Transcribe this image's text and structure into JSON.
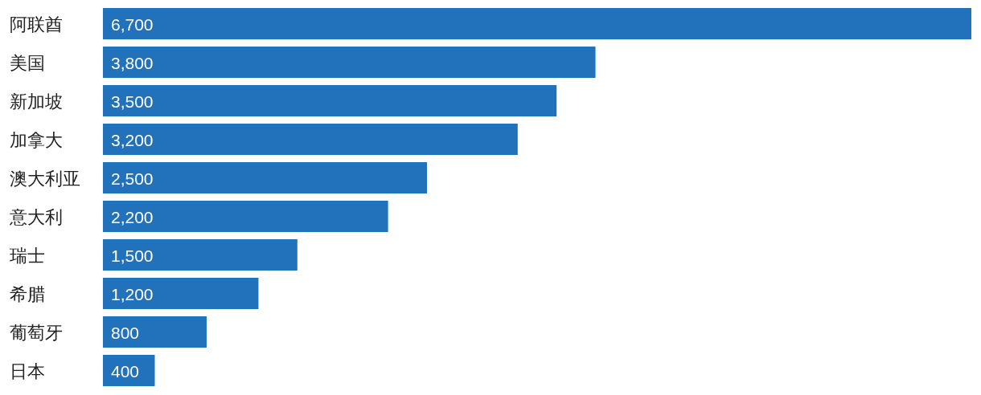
{
  "chart_data": {
    "type": "bar",
    "orientation": "horizontal",
    "categories": [
      "阿联酋",
      "美国",
      "新加坡",
      "加拿大",
      "澳大利亚",
      "意大利",
      "瑞士",
      "希腊",
      "葡萄牙",
      "日本"
    ],
    "values": [
      6700,
      3800,
      3500,
      3200,
      2500,
      2200,
      1500,
      1200,
      800,
      400
    ],
    "value_labels": [
      "6,700",
      "3,800",
      "3,500",
      "3,200",
      "2,500",
      "2,200",
      "1,500",
      "1,200",
      "800",
      "400"
    ],
    "color": "#2271bb"
  }
}
